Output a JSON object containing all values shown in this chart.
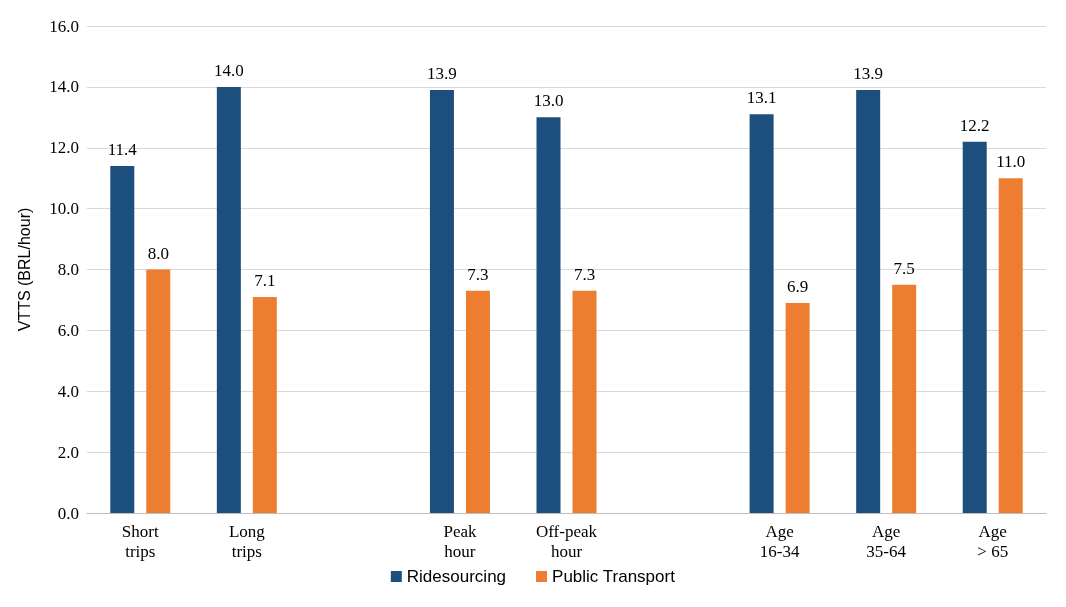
{
  "chart_data": {
    "type": "bar",
    "ylabel": "VTTS (BRL/hour)",
    "categories": [
      "Short trips",
      "Long trips",
      null,
      "Peak hour",
      "Off-peak hour",
      null,
      "Age 16-34",
      "Age 35-64",
      "Age > 65"
    ],
    "series": [
      {
        "name": "Ridesourcing",
        "color": "#1c4f7e",
        "values": [
          11.4,
          14.0,
          null,
          13.9,
          13.0,
          null,
          13.1,
          13.9,
          12.2
        ],
        "value_labels": [
          "11.4",
          "14.0",
          null,
          "13.9",
          "13.0",
          null,
          "13.1",
          "13.9",
          "12.2"
        ]
      },
      {
        "name": "Public Transport",
        "color": "#ed7d31",
        "values": [
          8.0,
          7.1,
          null,
          7.3,
          7.3,
          null,
          6.9,
          7.5,
          11.0
        ],
        "value_labels": [
          "8.0",
          "7.1",
          null,
          "7.3",
          "7.3",
          null,
          "6.9",
          "7.5",
          "11.0"
        ]
      }
    ],
    "ylim": [
      0,
      16
    ],
    "yticks": [
      {
        "value": 0,
        "label": "0.0"
      },
      {
        "value": 2,
        "label": "2.0"
      },
      {
        "value": 4,
        "label": "4.0"
      },
      {
        "value": 6,
        "label": "6.0"
      },
      {
        "value": 8,
        "label": "8.0"
      },
      {
        "value": 10,
        "label": "10.0"
      },
      {
        "value": 12,
        "label": "12.0"
      },
      {
        "value": 14,
        "label": "14.0"
      },
      {
        "value": 16,
        "label": "16.0"
      }
    ],
    "grid": "y",
    "legend": "bottom"
  }
}
